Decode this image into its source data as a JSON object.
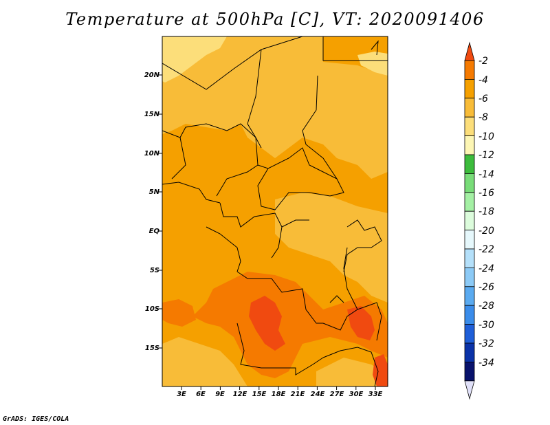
{
  "title": "Temperature at 500hPa [C], VT: 2020091406",
  "credit": "GrADS: IGES/COLA",
  "lat_labels": [
    "20N",
    "15N",
    "10N",
    "5N",
    "EQ",
    "5S",
    "10S",
    "15S"
  ],
  "lon_labels": [
    "3E",
    "6E",
    "9E",
    "12E",
    "15E",
    "18E",
    "21E",
    "24E",
    "27E",
    "30E",
    "33E"
  ],
  "colorbar": {
    "labels": [
      "-2",
      "-4",
      "-6",
      "-8",
      "-10",
      "-12",
      "-14",
      "-16",
      "-18",
      "-20",
      "-22",
      "-24",
      "-26",
      "-28",
      "-30",
      "-32",
      "-34"
    ],
    "colors": [
      "#f04a10",
      "#f57a00",
      "#f5a000",
      "#f8bc38",
      "#fcde7a",
      "#fdf6b4",
      "#3cbc3c",
      "#78dc78",
      "#a4f0a4",
      "#dcfcdc",
      "#e6f8fc",
      "#b4e0fa",
      "#8ccaf6",
      "#5aaaf0",
      "#3a8cea",
      "#1e5ed8",
      "#0a32a8",
      "#08126c",
      "#e0e0f8"
    ]
  },
  "colors": {
    "base_field": "#f5a000",
    "warm_field": "#f8bc38",
    "hot_field": "#f57a00",
    "hottest_field": "#f04a10",
    "cool_field": "#fcde7a",
    "border_line": "#000000"
  }
}
